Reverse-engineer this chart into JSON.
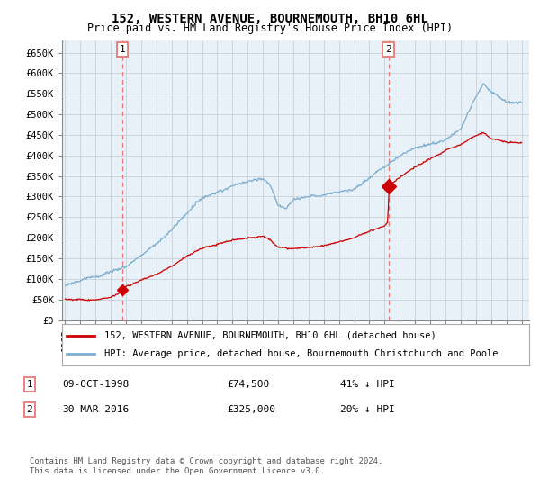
{
  "title": "152, WESTERN AVENUE, BOURNEMOUTH, BH10 6HL",
  "subtitle": "Price paid vs. HM Land Registry's House Price Index (HPI)",
  "ylabel_ticks": [
    "£0",
    "£50K",
    "£100K",
    "£150K",
    "£200K",
    "£250K",
    "£300K",
    "£350K",
    "£400K",
    "£450K",
    "£500K",
    "£550K",
    "£600K",
    "£650K"
  ],
  "ytick_values": [
    0,
    50000,
    100000,
    150000,
    200000,
    250000,
    300000,
    350000,
    400000,
    450000,
    500000,
    550000,
    600000,
    650000
  ],
  "ylim": [
    0,
    680000
  ],
  "xlim_start": 1994.8,
  "xlim_end": 2025.5,
  "purchase1_x": 1998.77,
  "purchase1_y": 74500,
  "purchase2_x": 2016.25,
  "purchase2_y": 325000,
  "vline1_x": 1998.77,
  "vline2_x": 2016.25,
  "legend_line1": "152, WESTERN AVENUE, BOURNEMOUTH, BH10 6HL (detached house)",
  "legend_line2": "HPI: Average price, detached house, Bournemouth Christchurch and Poole",
  "table_row1_label": "1",
  "table_row1_date": "09-OCT-1998",
  "table_row1_price": "£74,500",
  "table_row1_hpi": "41% ↓ HPI",
  "table_row2_label": "2",
  "table_row2_date": "30-MAR-2016",
  "table_row2_price": "£325,000",
  "table_row2_hpi": "20% ↓ HPI",
  "footer": "Contains HM Land Registry data © Crown copyright and database right 2024.\nThis data is licensed under the Open Government Licence v3.0.",
  "line_color_price": "#cc0000",
  "line_color_hpi": "#7aadcf",
  "vline_color": "#e87878",
  "bg_plot": "#e8f0f8",
  "bg_fig": "#ffffff",
  "grid_color": "#c8d0d8",
  "title_fontsize": 10,
  "subtitle_fontsize": 8.5,
  "tick_fontsize": 7.5,
  "legend_fontsize": 7.5,
  "annotation_fontsize": 8,
  "footer_fontsize": 6.5
}
